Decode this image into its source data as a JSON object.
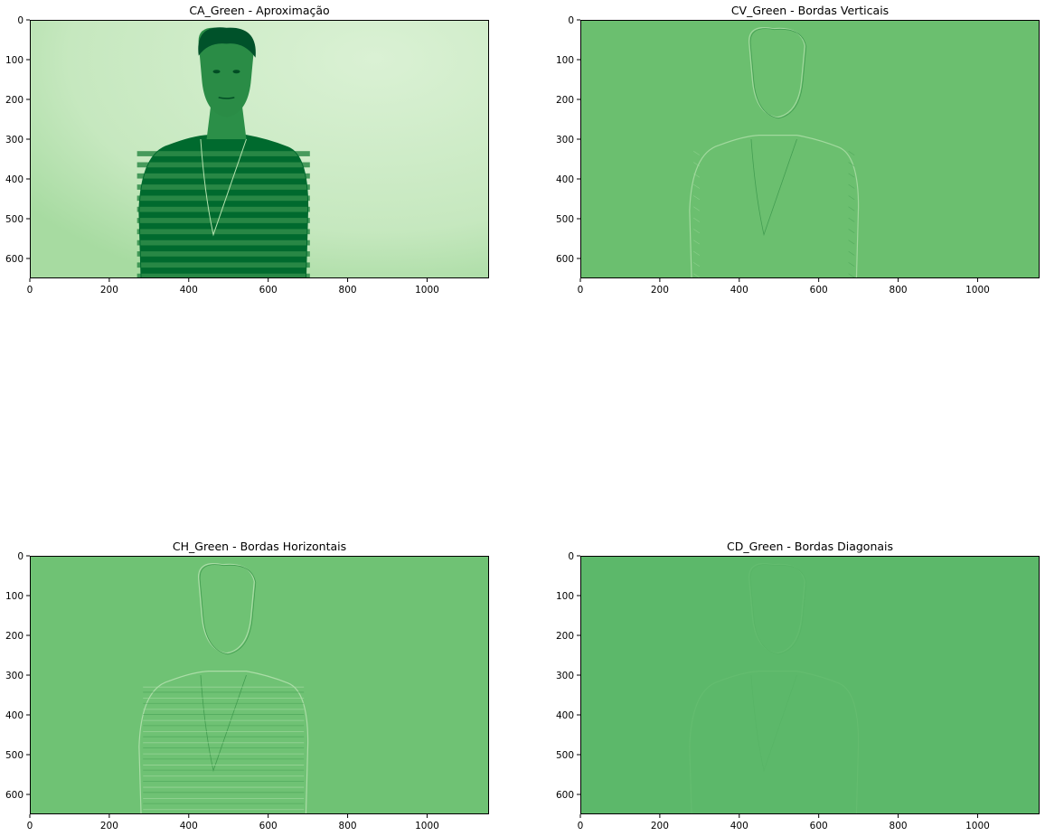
{
  "figure": {
    "panels": [
      {
        "title": "CA_Green - Aproximação",
        "kind": "approximation",
        "xlim": [
          0,
          1156
        ],
        "ylim": [
          650,
          0
        ],
        "xticks": [
          0,
          200,
          400,
          600,
          800,
          1000
        ],
        "yticks": [
          0,
          100,
          200,
          300,
          400,
          500,
          600
        ],
        "colormap": "Greens",
        "colors": {
          "light": "#d6efd0",
          "dark": "#006a2e",
          "mid": "#2f8c49"
        }
      },
      {
        "title": "CV_Green - Bordas Verticais",
        "kind": "vertical-edges",
        "xlim": [
          0,
          1156
        ],
        "ylim": [
          650,
          0
        ],
        "xticks": [
          0,
          200,
          400,
          600,
          800,
          1000
        ],
        "yticks": [
          0,
          100,
          200,
          300,
          400,
          500,
          600
        ],
        "colormap": "Greens",
        "colors": {
          "fill": "#6bbf6f",
          "edge_light": "#a8dca4",
          "edge_dark": "#3f9a4f"
        }
      },
      {
        "title": "CH_Green - Bordas Horizontais",
        "kind": "horizontal-edges",
        "xlim": [
          0,
          1156
        ],
        "ylim": [
          650,
          0
        ],
        "xticks": [
          0,
          200,
          400,
          600,
          800,
          1000
        ],
        "yticks": [
          0,
          100,
          200,
          300,
          400,
          500,
          600
        ],
        "colormap": "Greens",
        "colors": {
          "fill": "#6fc274",
          "edge_light": "#b2e0ad",
          "edge_dark": "#3d984c"
        }
      },
      {
        "title": "CD_Green - Bordas Diagonais",
        "kind": "diagonal-edges",
        "xlim": [
          0,
          1156
        ],
        "ylim": [
          650,
          0
        ],
        "xticks": [
          0,
          200,
          400,
          600,
          800,
          1000
        ],
        "yticks": [
          0,
          100,
          200,
          300,
          400,
          500,
          600
        ],
        "colormap": "Greens",
        "colors": {
          "fill": "#5cb86a",
          "edge_light": "#7ac97e",
          "edge_dark": "#4dab5d"
        }
      }
    ]
  }
}
